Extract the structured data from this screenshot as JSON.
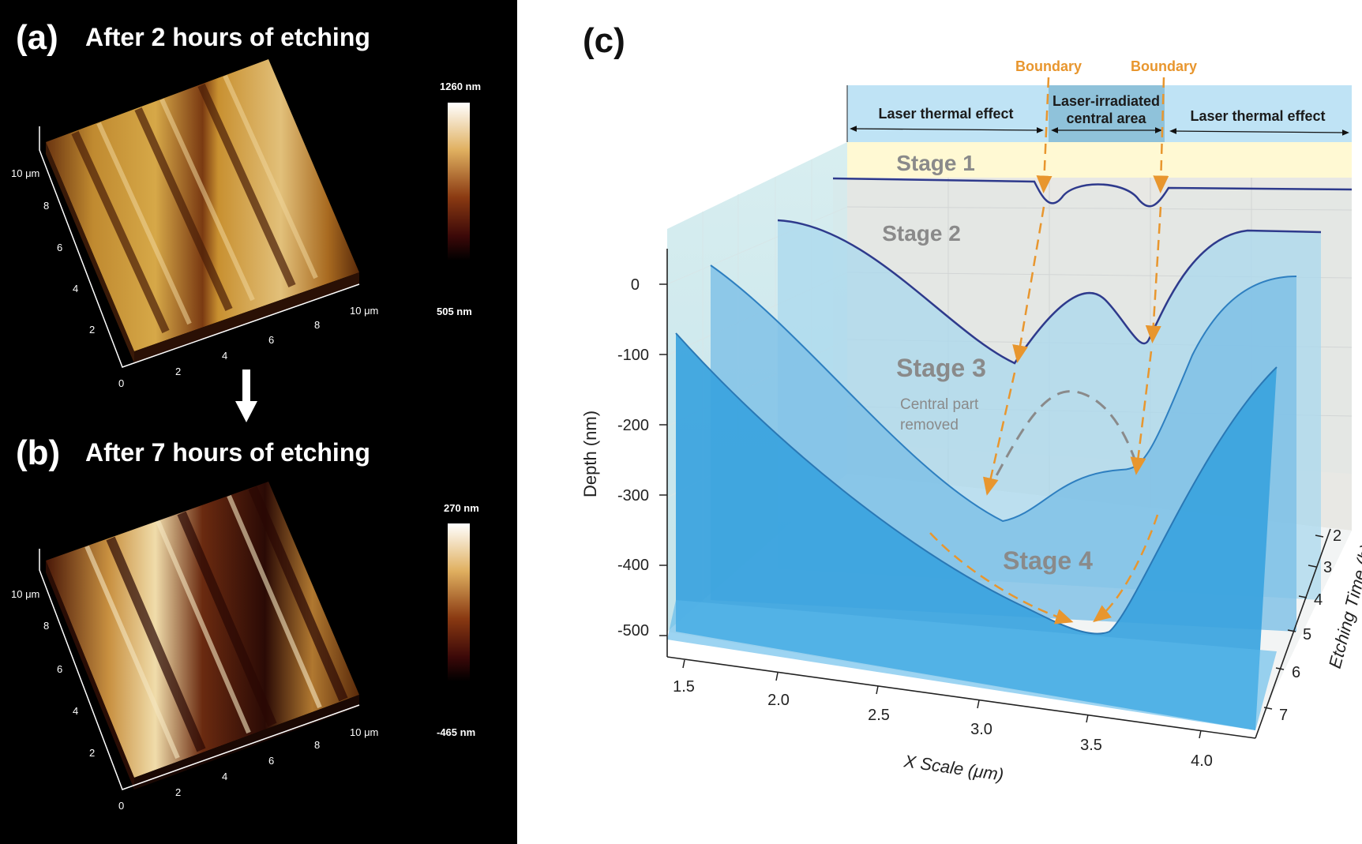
{
  "panel_a": {
    "letter": "(a)",
    "title": "After 2 hours of etching",
    "colorbar_max": "1260 nm",
    "colorbar_min": "505 nm",
    "y_ticks": [
      "10 μm",
      "8",
      "6",
      "4",
      "2"
    ],
    "x_ticks": [
      "0",
      "2",
      "4",
      "6",
      "8",
      "10 μm"
    ]
  },
  "panel_b": {
    "letter": "(b)",
    "title": "After 7 hours of etching",
    "colorbar_max": "270 nm",
    "colorbar_min": "-465 nm",
    "y_ticks": [
      "10 μm",
      "8",
      "6",
      "4",
      "2"
    ],
    "x_ticks": [
      "0",
      "2",
      "4",
      "6",
      "8",
      "10 μm"
    ]
  },
  "panel_c": {
    "letter": "(c)",
    "regions": {
      "left": "Laser thermal effect",
      "center_line1": "Laser-irradiated",
      "center_line2": "central area",
      "right": "Laser thermal effect"
    },
    "boundary_left": "Boundary",
    "boundary_right": "Boundary",
    "stage1": "Stage 1",
    "stage2": "Stage 2",
    "stage3": "Stage 3",
    "stage3_note_line1": "Central part",
    "stage3_note_line2": "removed",
    "stage4": "Stage 4",
    "y_axis_title": "Depth (nm)",
    "x_axis_title": "X Scale (μm)",
    "z_axis_title": "Etching Time (h)",
    "y_ticks": [
      "0",
      "-100",
      "-200",
      "-300",
      "-400",
      "-500"
    ],
    "x_ticks": [
      "1.5",
      "2.0",
      "2.5",
      "3.0",
      "3.5",
      "4.0"
    ],
    "z_ticks": [
      "2",
      "3",
      "4",
      "5",
      "6",
      "7"
    ],
    "colors": {
      "boundary": "#e8962e",
      "profile_line": "#2e3a8c",
      "header_band": "#bfe3f5",
      "stage1_band": "#fff9d3"
    }
  },
  "chart_data": {
    "type": "line",
    "title": "",
    "xlabel": "X Scale (μm)",
    "ylabel": "Depth (nm)",
    "zlabel": "Etching Time (h)",
    "xlim": [
      1.5,
      4.0
    ],
    "ylim": [
      -500,
      0
    ],
    "zlim": [
      2,
      7
    ],
    "series": [
      {
        "name": "Stage 1",
        "x": [
          1.5,
          3.0,
          3.25,
          3.35,
          3.55,
          3.75,
          3.85,
          4.1
        ],
        "y": [
          0,
          -5,
          -40,
          -10,
          -10,
          -40,
          -5,
          0
        ]
      },
      {
        "name": "Stage 2",
        "x": [
          1.5,
          2.0,
          2.5,
          3.0,
          3.25,
          3.4,
          3.65,
          3.8,
          4.1
        ],
        "y": [
          0,
          -30,
          -130,
          -260,
          -140,
          -110,
          -180,
          -120,
          0
        ]
      },
      {
        "name": "Stage 3",
        "x": [
          1.5,
          2.0,
          2.5,
          3.0,
          3.3,
          3.5,
          3.75,
          4.1
        ],
        "y": [
          0,
          -60,
          -200,
          -330,
          -290,
          -250,
          -240,
          0
        ]
      },
      {
        "name": "Stage 4",
        "x": [
          1.5,
          2.0,
          2.5,
          3.0,
          3.3,
          3.5,
          3.75,
          4.1
        ],
        "y": [
          0,
          -100,
          -260,
          -420,
          -480,
          -470,
          -300,
          0
        ]
      }
    ]
  }
}
